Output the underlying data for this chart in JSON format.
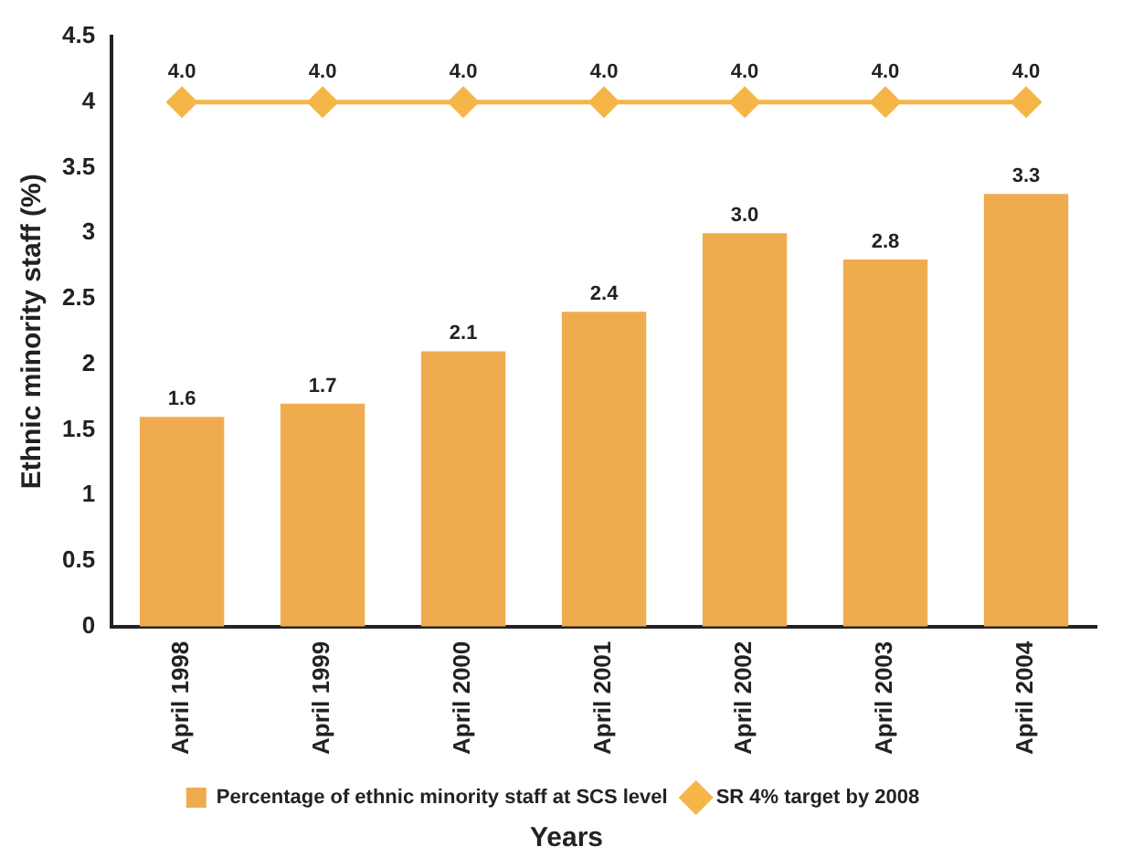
{
  "chart_data": {
    "type": "bar",
    "xlabel": "Years",
    "ylabel": "Ethnic minority staff (%)",
    "categories": [
      "April 1998",
      "April 1999",
      "April 2000",
      "April 2001",
      "April 2002",
      "April 2003",
      "April 2004"
    ],
    "series": [
      {
        "name": "Percentage of ethnic minority staff at SCS level",
        "color": "#efac4f",
        "values": [
          1.6,
          1.7,
          2.1,
          2.4,
          3.0,
          2.8,
          3.3
        ],
        "value_labels": [
          "1.6",
          "1.7",
          "2.1",
          "2.4",
          "3.0",
          "2.8",
          "3.3"
        ]
      },
      {
        "name": "SR 4% target by 2008",
        "type": "line",
        "color": "#f5b547",
        "values": [
          4,
          4,
          4,
          4,
          4,
          4,
          4
        ],
        "value_labels": [
          "4.0",
          "4.0",
          "4.0",
          "4.0",
          "4.0",
          "4.0",
          "4.0"
        ],
        "marker": "diamond",
        "line_style": "solid"
      }
    ],
    "ylim": [
      0,
      4.5
    ],
    "yticks": [
      0,
      0.5,
      1,
      1.5,
      2,
      2.5,
      3,
      3.5,
      4,
      4.5
    ],
    "grid": false,
    "legend": "bottom"
  }
}
